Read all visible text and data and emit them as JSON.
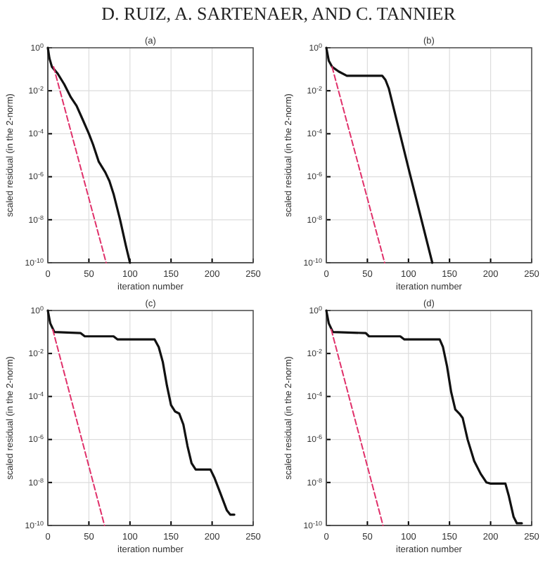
{
  "chart_data": [
    {
      "type": "line",
      "title": "(a)",
      "xlabel": "iteration number",
      "ylabel": "scaled residual (in the 2-norm)",
      "annotations": [
        "D. RUIZ, A. SARTENAER, AND C. TANNIER"
      ],
      "log": "y",
      "grid": true,
      "line_style": "solid",
      "xlim": [
        0,
        250
      ],
      "xticks": [
        0,
        50,
        100,
        150,
        200,
        250
      ],
      "ylim": [
        1e-10,
        1
      ],
      "yticks": [
        {
          "value": 1e-10,
          "label": "10$^{-10}$"
        },
        {
          "value": 1e-08,
          "label": "10$^{-8}$"
        },
        {
          "value": 1e-06,
          "label": "10$^{-6}$"
        },
        {
          "value": 0.0001,
          "label": "10$^{-4}$"
        },
        {
          "value": 0.01,
          "label": "10$^{-2}$"
        },
        {
          "value": 1,
          "label": "10$^{0}$"
        }
      ],
      "series": [
        {
          "color": "#111111",
          "x": [
            0,
            2,
            5,
            12,
            20,
            28,
            35,
            42,
            50,
            55,
            62,
            70,
            75,
            80,
            88,
            95,
            100
          ],
          "values": [
            1,
            0.32,
            0.13,
            0.063,
            0.02,
            0.005,
            0.002,
            0.0005,
            0.0001,
            3.2e-05,
            5e-06,
            1.6e-06,
            6.3e-07,
            1.6e-07,
            1e-08,
            6.3e-10,
            1e-10
          ]
        },
        {
          "color": "#e0306a",
          "line_style": "dashed",
          "x": [
            7,
            71
          ],
          "values": [
            0.13,
            1e-10
          ]
        }
      ]
    },
    {
      "type": "line",
      "title": "(b)",
      "xlabel": "iteration number",
      "ylabel": "scaled residual (in the 2-norm)",
      "log": "y",
      "grid": true,
      "line_style": "solid",
      "xlim": [
        0,
        250
      ],
      "xticks": [
        0,
        50,
        100,
        150,
        200,
        250
      ],
      "ylim": [
        1e-10,
        1
      ],
      "yticks": [
        {
          "value": 1e-10,
          "label": "10$^{-10}$"
        },
        {
          "value": 1e-08,
          "label": "10$^{-8}$"
        },
        {
          "value": 1e-06,
          "label": "10$^{-6}$"
        },
        {
          "value": 0.0001,
          "label": "10$^{-4}$"
        },
        {
          "value": 0.01,
          "label": "10$^{-2}$"
        },
        {
          "value": 1,
          "label": "10$^{0}$"
        }
      ],
      "series": [
        {
          "color": "#111111",
          "x": [
            0,
            3,
            7,
            15,
            25,
            45,
            68,
            72,
            76,
            100,
            129
          ],
          "values": [
            1,
            0.25,
            0.13,
            0.079,
            0.05,
            0.05,
            0.05,
            0.032,
            0.013,
            2.5e-06,
            1e-10
          ]
        },
        {
          "color": "#e0306a",
          "line_style": "dashed",
          "x": [
            7,
            71
          ],
          "values": [
            0.13,
            1e-10
          ]
        }
      ]
    },
    {
      "type": "line",
      "title": "(c)",
      "xlabel": "iteration number",
      "ylabel": "scaled residual (in the 2-norm)",
      "log": "y",
      "grid": true,
      "line_style": "solid",
      "xlim": [
        0,
        250
      ],
      "xticks": [
        0,
        50,
        100,
        150,
        200,
        250
      ],
      "ylim": [
        1e-10,
        1
      ],
      "yticks": [
        {
          "value": 1e-10,
          "label": "10$^{-10}$"
        },
        {
          "value": 1e-08,
          "label": "10$^{-8}$"
        },
        {
          "value": 1e-06,
          "label": "10$^{-6}$"
        },
        {
          "value": 0.0001,
          "label": "10$^{-4}$"
        },
        {
          "value": 0.01,
          "label": "10$^{-2}$"
        },
        {
          "value": 1,
          "label": "10$^{0}$"
        }
      ],
      "series": [
        {
          "color": "#111111",
          "x": [
            0,
            3,
            8,
            40,
            45,
            80,
            85,
            130,
            135,
            140,
            145,
            150,
            155,
            160,
            165,
            170,
            175,
            180,
            198,
            203,
            210,
            218,
            222,
            227
          ],
          "values": [
            1,
            0.25,
            0.1,
            0.089,
            0.063,
            0.063,
            0.045,
            0.045,
            0.02,
            0.004,
            0.00032,
            4e-05,
            2e-05,
            1.6e-05,
            5e-06,
            5e-07,
            7.9e-08,
            4e-08,
            4e-08,
            1.6e-08,
            3.2e-09,
            5e-10,
            3.2e-10,
            3.2e-10
          ]
        },
        {
          "color": "#e0306a",
          "line_style": "dashed",
          "x": [
            6,
            69
          ],
          "values": [
            0.13,
            1e-10
          ]
        }
      ]
    },
    {
      "type": "line",
      "title": "(d)",
      "xlabel": "iteration number",
      "ylabel": "scaled residual (in the 2-norm)",
      "log": "y",
      "grid": true,
      "line_style": "solid",
      "xlim": [
        0,
        250
      ],
      "xticks": [
        0,
        50,
        100,
        150,
        200,
        250
      ],
      "ylim": [
        1e-10,
        1
      ],
      "yticks": [
        {
          "value": 1e-10,
          "label": "10$^{-10}$"
        },
        {
          "value": 1e-08,
          "label": "10$^{-8}$"
        },
        {
          "value": 1e-06,
          "label": "10$^{-6}$"
        },
        {
          "value": 0.0001,
          "label": "10$^{-4}$"
        },
        {
          "value": 0.01,
          "label": "10$^{-2}$"
        },
        {
          "value": 1,
          "label": "10$^{0}$"
        }
      ],
      "series": [
        {
          "color": "#111111",
          "x": [
            0,
            3,
            8,
            48,
            52,
            90,
            95,
            138,
            142,
            147,
            152,
            157,
            162,
            166,
            172,
            180,
            188,
            195,
            200,
            218,
            222,
            228,
            232,
            238
          ],
          "values": [
            1,
            0.25,
            0.1,
            0.089,
            0.063,
            0.063,
            0.045,
            0.045,
            0.02,
            0.0025,
            0.00016,
            2.5e-05,
            1.6e-05,
            1e-05,
            1e-06,
            1e-07,
            2.5e-08,
            1e-08,
            8.9e-09,
            8.9e-09,
            2.5e-09,
            2.5e-10,
            1.26e-10,
            1.26e-10
          ]
        },
        {
          "color": "#e0306a",
          "line_style": "dashed",
          "x": [
            6,
            69
          ],
          "values": [
            0.13,
            1e-10
          ]
        }
      ]
    }
  ]
}
